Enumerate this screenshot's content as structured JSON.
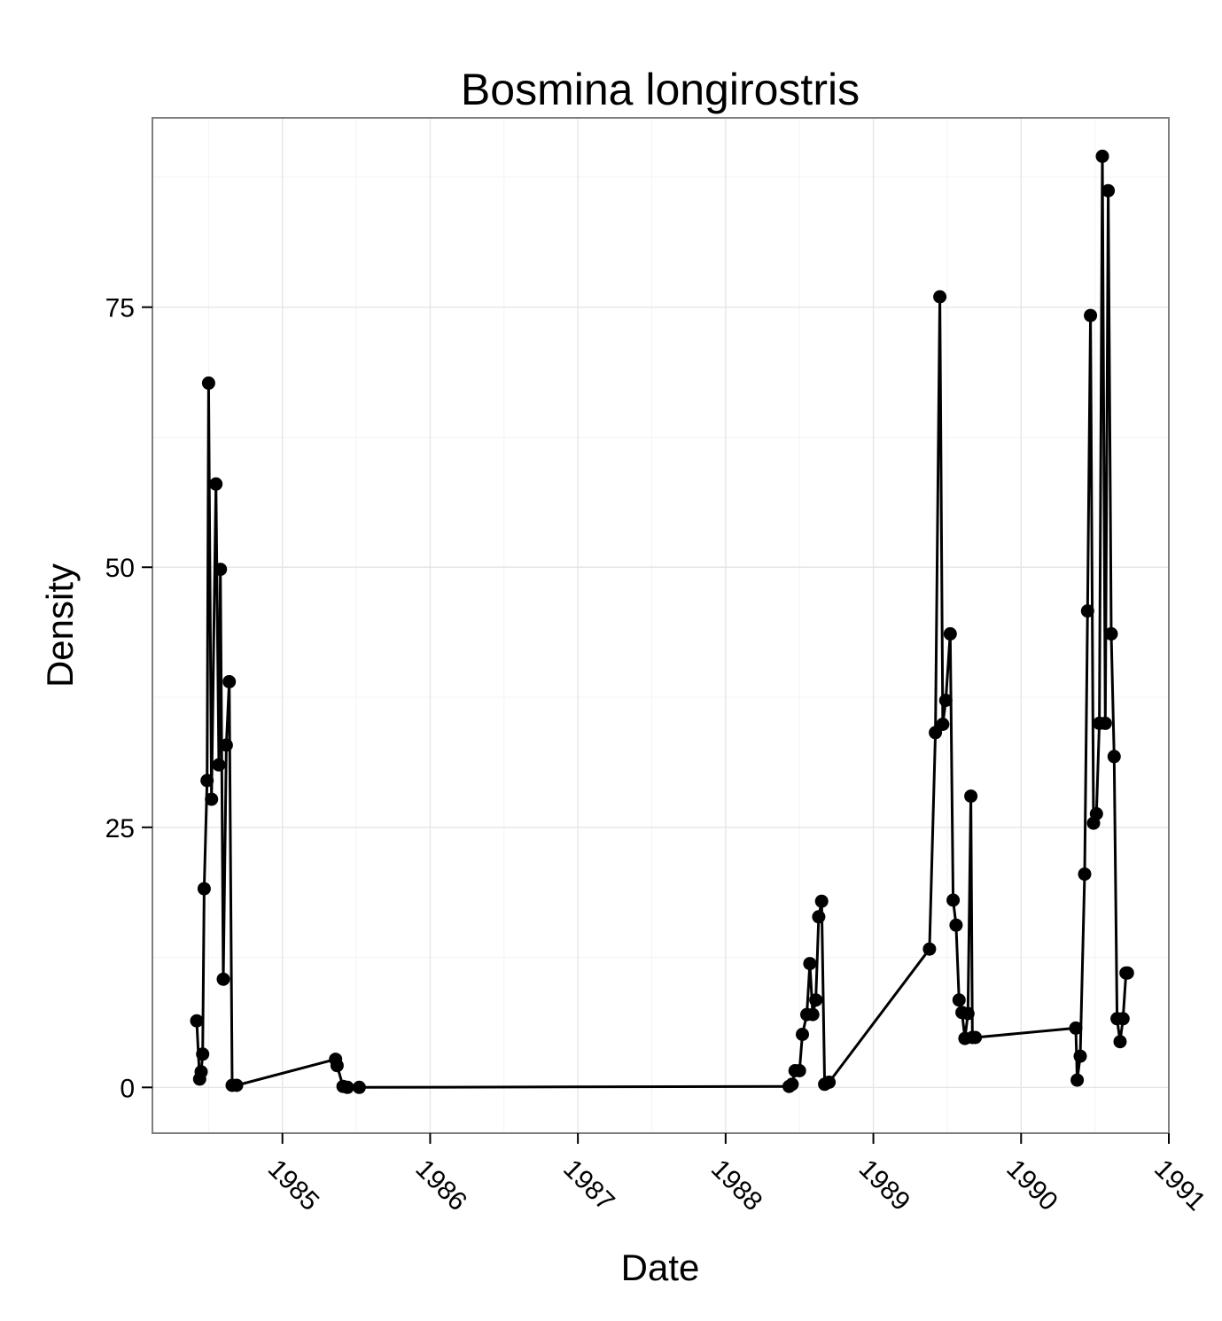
{
  "chart_data": {
    "type": "line",
    "title": "Bosmina longirostris",
    "xlabel": "Date",
    "ylabel": "Density",
    "xlim": [
      1984.12,
      1991.0
    ],
    "ylim": [
      -4.4,
      93.2
    ],
    "x_ticks": [
      1985,
      1986,
      1987,
      1988,
      1989,
      1990,
      1991
    ],
    "x_tick_labels": [
      "1985",
      "1986",
      "1987",
      "1988",
      "1989",
      "1990",
      "1991"
    ],
    "y_ticks": [
      0,
      25,
      50,
      75
    ],
    "y_tick_labels": [
      "0",
      "25",
      "50",
      "75"
    ],
    "grid": true,
    "legend": "none",
    "markers": true,
    "color": "#000000",
    "series": [
      {
        "x": [
          1984.42,
          1984.44,
          1984.45,
          1984.46,
          1984.47,
          1984.49,
          1984.5,
          1984.52,
          1984.55,
          1984.57,
          1984.58,
          1984.6,
          1984.62,
          1984.64,
          1984.66,
          1984.69,
          1985.36,
          1985.37,
          1985.41,
          1985.44,
          1985.52,
          1988.43,
          1988.45,
          1988.47,
          1988.5,
          1988.52,
          1988.55,
          1988.57,
          1988.59,
          1988.61,
          1988.63,
          1988.65,
          1988.67,
          1988.7,
          1989.38,
          1989.42,
          1989.45,
          1989.47,
          1989.49,
          1989.52,
          1989.54,
          1989.56,
          1989.58,
          1989.6,
          1989.62,
          1989.64,
          1989.66,
          1989.67,
          1989.69,
          1990.37,
          1990.38,
          1990.4,
          1990.43,
          1990.45,
          1990.47,
          1990.49,
          1990.51,
          1990.53,
          1990.55,
          1990.57,
          1990.59,
          1990.61,
          1990.63,
          1990.65,
          1990.67,
          1990.69,
          1990.71,
          1990.72
        ],
        "y": [
          6.4,
          0.8,
          1.5,
          3.2,
          19.1,
          29.5,
          67.7,
          27.7,
          58.0,
          31.0,
          49.8,
          10.4,
          32.9,
          39.0,
          0.2,
          0.2,
          2.7,
          2.1,
          0.1,
          0.0,
          0.0,
          0.1,
          0.3,
          1.6,
          1.6,
          5.1,
          7.0,
          11.9,
          7.0,
          8.4,
          16.4,
          17.9,
          0.3,
          0.5,
          13.3,
          34.1,
          76.0,
          34.9,
          37.2,
          43.6,
          18.0,
          15.6,
          8.4,
          7.2,
          4.7,
          7.1,
          28.0,
          4.8,
          4.8,
          5.7,
          0.7,
          3.0,
          20.5,
          45.8,
          74.2,
          25.4,
          26.3,
          35.0,
          89.5,
          35.0,
          86.2,
          43.6,
          31.8,
          6.6,
          4.4,
          6.6,
          11.0,
          11.0
        ]
      }
    ]
  }
}
